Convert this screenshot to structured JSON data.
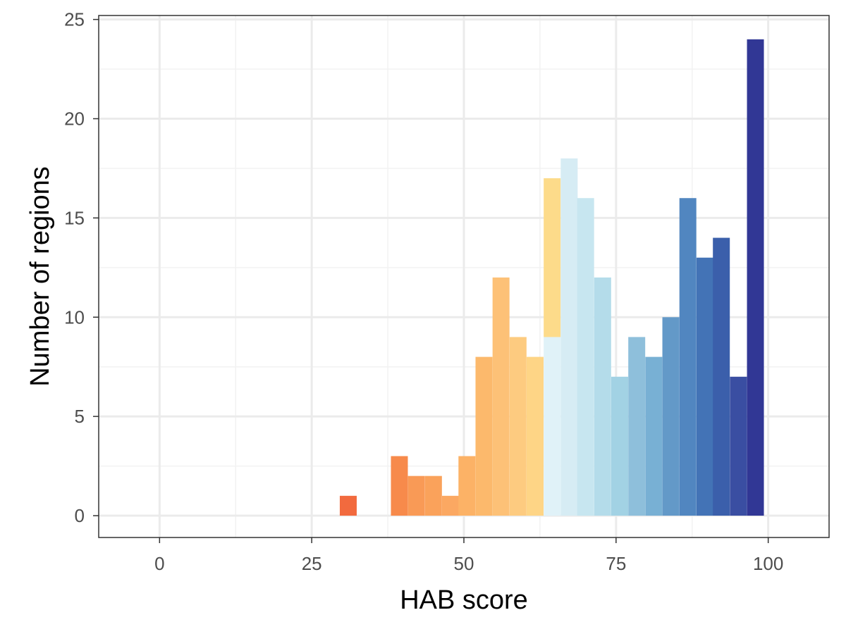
{
  "chart_data": {
    "type": "bar",
    "title": "",
    "xlabel": "HAB score",
    "ylabel": "Number of regions",
    "xlim": [
      -10,
      110
    ],
    "ylim": [
      -1.1,
      25.2
    ],
    "xticks": [
      0,
      25,
      50,
      75,
      100
    ],
    "yticks": [
      0,
      5,
      10,
      15,
      20,
      25
    ],
    "grid": true,
    "legend": "none",
    "bin_width": 2.78,
    "bins": [
      {
        "x": 31.0,
        "count": 1,
        "color": "#f26a3e"
      },
      {
        "x": 39.4,
        "count": 3,
        "color": "#f78a4b"
      },
      {
        "x": 42.2,
        "count": 2,
        "color": "#f99a56"
      },
      {
        "x": 45.0,
        "count": 2,
        "color": "#faa25b"
      },
      {
        "x": 47.8,
        "count": 1,
        "color": "#fba862"
      },
      {
        "x": 50.5,
        "count": 3,
        "color": "#fcb266"
      },
      {
        "x": 53.3,
        "count": 8,
        "color": "#fcb96c"
      },
      {
        "x": 56.1,
        "count": 12,
        "color": "#fdc177"
      },
      {
        "x": 58.9,
        "count": 9,
        "color": "#fdcb80"
      },
      {
        "x": 61.7,
        "count": 8,
        "color": "#fed586"
      },
      {
        "x": 64.5,
        "count": 17,
        "color": "#e0f2f8",
        "top_color": "#fddb8a",
        "split": 9
      },
      {
        "x": 67.3,
        "count": 18,
        "color": "#d6ecf4"
      },
      {
        "x": 70.0,
        "count": 16,
        "color": "#c7e6f0"
      },
      {
        "x": 72.8,
        "count": 12,
        "color": "#b4dcea"
      },
      {
        "x": 75.6,
        "count": 7,
        "color": "#a2d2e4"
      },
      {
        "x": 78.4,
        "count": 9,
        "color": "#8ebfdb"
      },
      {
        "x": 81.2,
        "count": 8,
        "color": "#78b0d4"
      },
      {
        "x": 84.0,
        "count": 10,
        "color": "#6399c8"
      },
      {
        "x": 86.8,
        "count": 16,
        "color": "#5186c0"
      },
      {
        "x": 89.6,
        "count": 13,
        "color": "#4373b6"
      },
      {
        "x": 92.3,
        "count": 14,
        "color": "#3b5fab"
      },
      {
        "x": 95.1,
        "count": 7,
        "color": "#3a4ea2"
      },
      {
        "x": 97.9,
        "count": 24,
        "color": "#313795"
      }
    ]
  },
  "colors": {
    "background": "#ffffff",
    "panel_border": "#333333",
    "grid_major": "#ebebeb",
    "grid_minor": "#f2f2f2",
    "tick_text": "#4d4d4d"
  }
}
